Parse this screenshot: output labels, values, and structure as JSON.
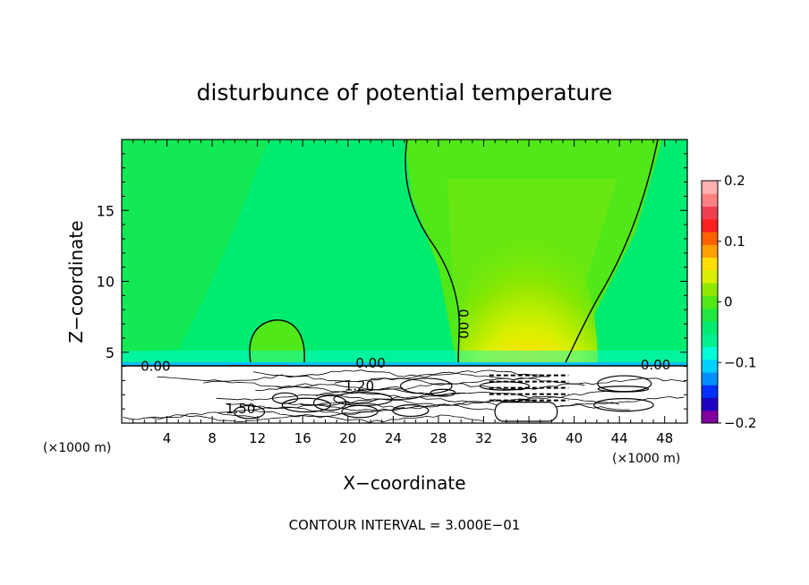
{
  "chart_data": {
    "type": "heatmap",
    "title": "disturbunce of potential temperature",
    "xlabel": "X−coordinate",
    "ylabel": "Z−coordinate",
    "x_unit_left": "(×1000 m)",
    "x_unit_right": "(×1000 m)",
    "footer": "CONTOUR INTERVAL = 3.000E−01",
    "xlim": [
      0,
      50
    ],
    "ylim": [
      0,
      20
    ],
    "x_ticks": [
      4,
      8,
      12,
      16,
      20,
      24,
      28,
      32,
      36,
      40,
      44,
      48
    ],
    "y_ticks": [
      5,
      10,
      15
    ],
    "terrain_top": 4,
    "colorbar": {
      "range": [
        -0.2,
        0.2
      ],
      "ticks": [
        "0.2",
        "0.1",
        "0",
        "−0.1",
        "−0.2"
      ],
      "colors": [
        "#8000a0",
        "#2000c0",
        "#0030ff",
        "#0090ff",
        "#00d0ff",
        "#00ffd8",
        "#00f090",
        "#00ec70",
        "#20e840",
        "#50e818",
        "#90e800",
        "#d8f000",
        "#ffe000",
        "#ffa000",
        "#ff6000",
        "#ff2020",
        "#f04050",
        "#ff8080",
        "#ffb0b0"
      ]
    },
    "contour_labels": [
      {
        "text": "0.00",
        "x": 29.8,
        "y": 7.0,
        "rotate": 90
      },
      {
        "text": "0.00",
        "x": 3.0,
        "y": 3.7,
        "rotate": 0
      },
      {
        "text": "0.00",
        "x": 22.0,
        "y": 3.9,
        "rotate": 0
      },
      {
        "text": "0.00",
        "x": 47.2,
        "y": 3.8,
        "rotate": 0
      },
      {
        "text": "1.20",
        "x": 21.0,
        "y": 2.3,
        "rotate": 0
      },
      {
        "text": "1.50",
        "x": 10.5,
        "y": 0.7,
        "rotate": 0
      }
    ]
  }
}
